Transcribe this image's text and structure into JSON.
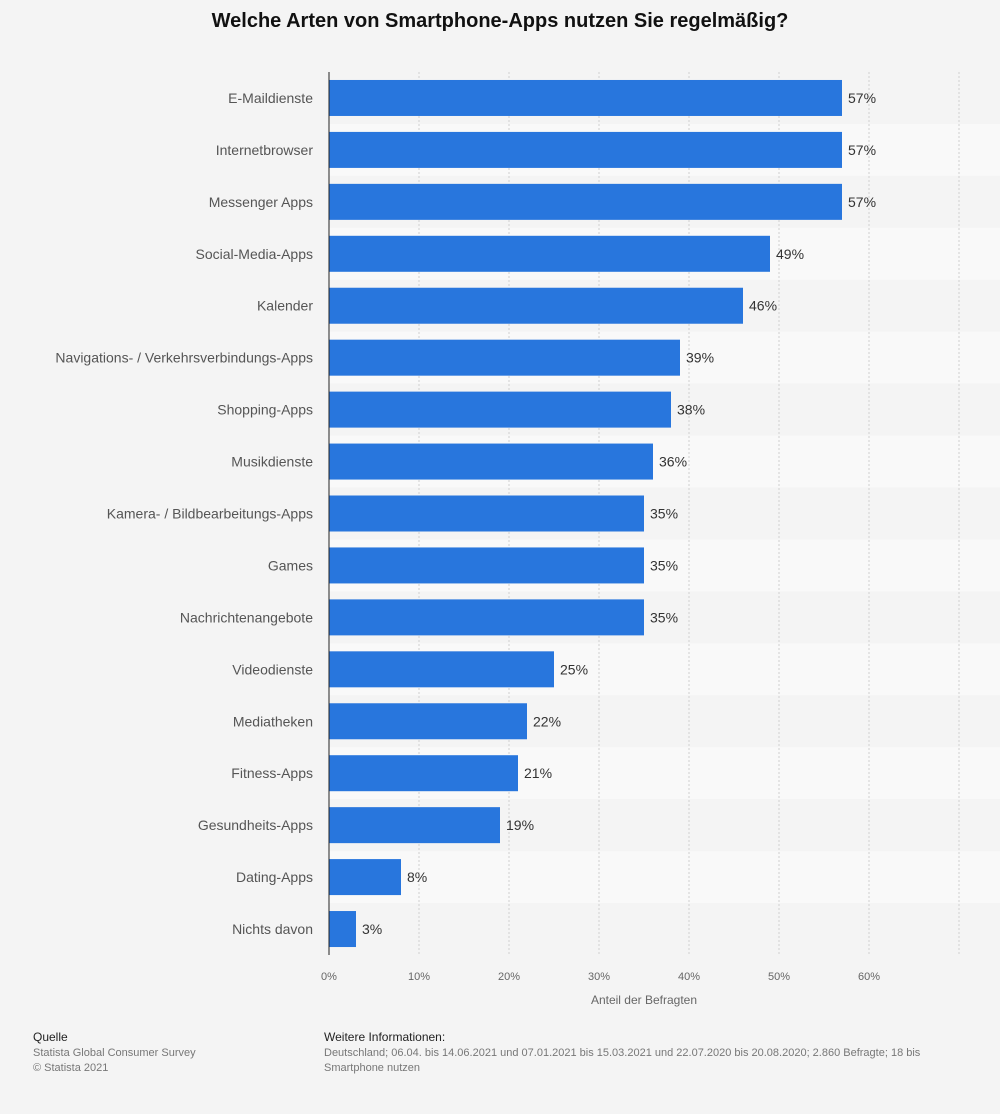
{
  "chart_data": {
    "type": "bar",
    "orientation": "horizontal",
    "title": "Welche Arten von Smartphone-Apps nutzen Sie regelmäßig?",
    "xlabel": "Anteil der Befragten",
    "ylabel": "",
    "xlim": [
      0,
      70
    ],
    "ticks": [
      0,
      10,
      20,
      30,
      40,
      50,
      60
    ],
    "tick_labels": [
      "0%",
      "10%",
      "20%",
      "30%",
      "40%",
      "50%",
      "60%"
    ],
    "categories": [
      "E-Maildienste",
      "Internetbrowser",
      "Messenger Apps",
      "Social-Media-Apps",
      "Kalender",
      "Navigations- / Verkehrsverbindungs-Apps",
      "Shopping-Apps",
      "Musikdienste",
      "Kamera- / Bildbearbeitungs-Apps",
      "Games",
      "Nachrichtenangebote",
      "Videodienste",
      "Mediatheken",
      "Fitness-Apps",
      "Gesundheits-Apps",
      "Dating-Apps",
      "Nichts davon"
    ],
    "values": [
      57,
      57,
      57,
      49,
      46,
      39,
      38,
      36,
      35,
      35,
      35,
      25,
      22,
      21,
      19,
      8,
      3
    ],
    "value_labels": [
      "57%",
      "57%",
      "57%",
      "49%",
      "46%",
      "39%",
      "38%",
      "36%",
      "35%",
      "35%",
      "35%",
      "25%",
      "22%",
      "21%",
      "19%",
      "8%",
      "3%"
    ],
    "bar_color": "#2876dd",
    "grid": true,
    "legend": "none"
  },
  "footer": {
    "source_heading": "Quelle",
    "source_line1": "Statista Global Consumer Survey",
    "source_line2": "© Statista 2021",
    "info_heading": "Weitere Informationen:",
    "info_text": "Deutschland; 06.04. bis 14.06.2021 und 07.01.2021 bis 15.03.2021 und 22.07.2020 bis 20.08.2020; 2.860 Befragte; 18 bis\nSmartphone nutzen"
  }
}
